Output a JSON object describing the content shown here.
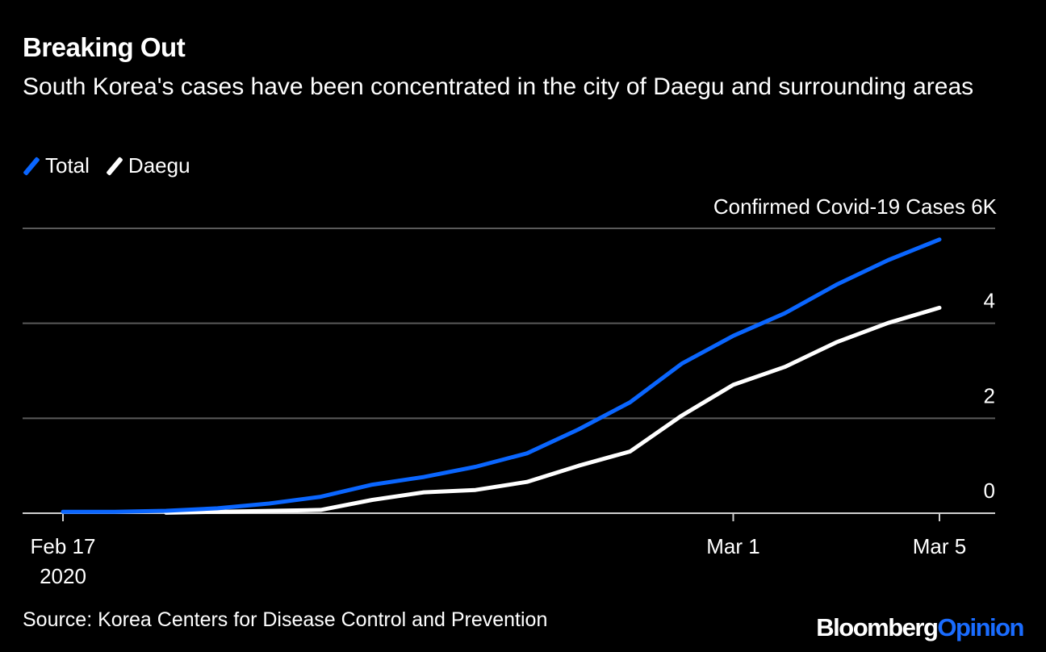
{
  "title": "Breaking Out",
  "subtitle": "South Korea's cases have been concentrated in the city of Daegu and surrounding areas",
  "legend": [
    {
      "label": "Total",
      "color": "#0a66ff"
    },
    {
      "label": "Daegu",
      "color": "#ffffff"
    }
  ],
  "source": "Source: Korea Centers for Disease Control and Prevention",
  "brand": {
    "part1": "Bloomberg",
    "part2": "Opinion"
  },
  "chart_data": {
    "type": "line",
    "title": "Breaking Out",
    "ylabel": "Confirmed Covid-19 Cases",
    "ylim": [
      0,
      6000
    ],
    "yticks": [
      0,
      2000,
      4000
    ],
    "ytick_labels": [
      "0",
      "2",
      "4"
    ],
    "ytop_label": "Confirmed Covid-19 Cases 6K",
    "xticks": [
      {
        "day": 0,
        "label": "Feb 17",
        "sublabel": "2020"
      },
      {
        "day": 13,
        "label": "Mar 1",
        "sublabel": ""
      },
      {
        "day": 17,
        "label": "Mar 5",
        "sublabel": ""
      }
    ],
    "series": [
      {
        "name": "Total",
        "color": "#0a66ff",
        "x": [
          0,
          1,
          2,
          3,
          4,
          5,
          6,
          7,
          8,
          9,
          10,
          11,
          12,
          13,
          14,
          15,
          16,
          17
        ],
        "values": [
          30,
          31,
          51,
          104,
          204,
          346,
          602,
          763,
          977,
          1261,
          1766,
          2337,
          3150,
          3736,
          4212,
          4812,
          5328,
          5766
        ]
      },
      {
        "name": "Daegu",
        "color": "#ffffff",
        "x": [
          2,
          3,
          4,
          5,
          6,
          7,
          8,
          9,
          10,
          11,
          12,
          13,
          14,
          15,
          16,
          17
        ],
        "values": [
          10,
          30,
          50,
          70,
          280,
          440,
          490,
          660,
          1000,
          1300,
          2055,
          2705,
          3081,
          3600,
          4006,
          4327
        ]
      }
    ]
  }
}
